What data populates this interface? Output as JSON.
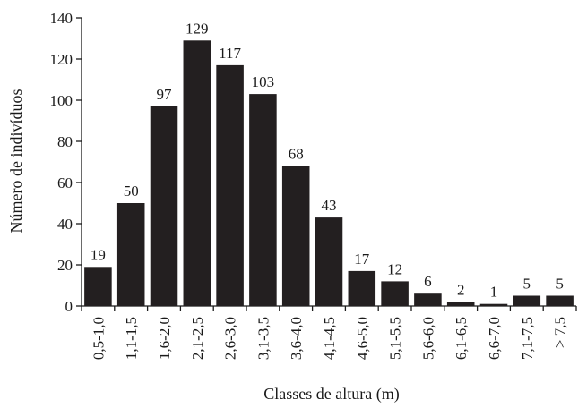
{
  "chart_data": {
    "type": "bar",
    "xlabel": "Classes de altura (m)",
    "ylabel": "Número de indivíduos",
    "ylim": [
      0,
      140
    ],
    "yticks": [
      0,
      20,
      40,
      60,
      80,
      100,
      120,
      140
    ],
    "grid": false,
    "bar_color": "#231f20",
    "categories": [
      "0,5-1,0",
      "1,1-1,5",
      "1,6-2,0",
      "2,1-2,5",
      "2,6-3,0",
      "3,1-3,5",
      "3,6-4,0",
      "4,1-4,5",
      "4,6-5,0",
      "5,1-5,5",
      "5,6-6,0",
      "6,1-6,5",
      "6,6-7,0",
      "7,1-7,5",
      "> 7,5"
    ],
    "values": [
      19,
      50,
      97,
      129,
      117,
      103,
      68,
      43,
      17,
      12,
      6,
      2,
      1,
      5,
      5
    ]
  }
}
